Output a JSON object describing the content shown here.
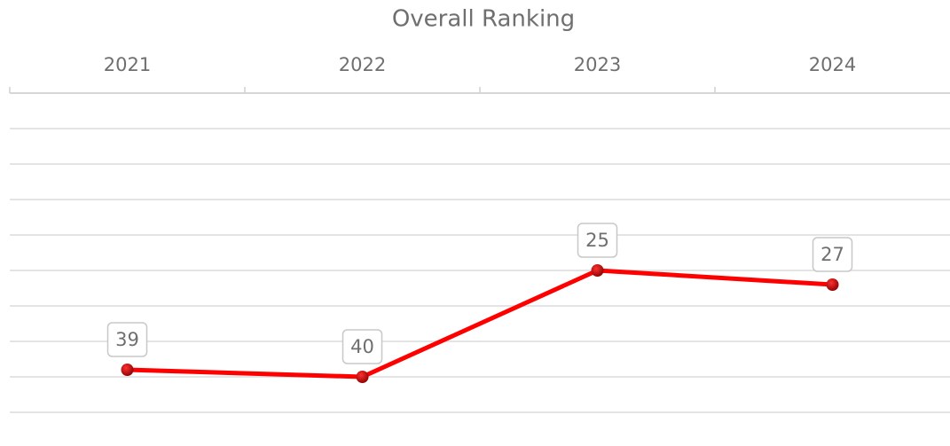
{
  "chart_data": {
    "type": "line",
    "title": "Overall Ranking",
    "categories": [
      "2021",
      "2022",
      "2023",
      "2024"
    ],
    "series": [
      {
        "name": "Overall Ranking",
        "color": "#ff0000",
        "marker_color": "#c00000",
        "values": [
          39,
          40,
          25,
          27
        ]
      }
    ],
    "ylim": [
      0,
      45
    ],
    "yticks": [
      0,
      5,
      10,
      15,
      20,
      25,
      30,
      35,
      40,
      45
    ],
    "y_reversed": true,
    "x_axis_position": "top",
    "grid": true,
    "data_labels": true
  }
}
